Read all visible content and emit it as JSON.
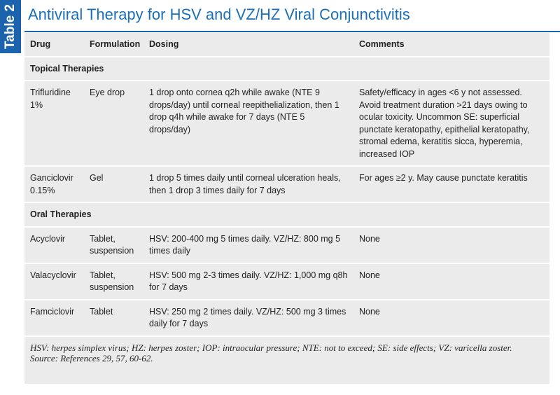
{
  "label": "Table 2",
  "title": "Antiviral Therapy for HSV and VZ/HZ Viral Conjunctivitis",
  "table": {
    "columns": [
      "Drug",
      "Formulation",
      "Dosing",
      "Comments"
    ],
    "sections": [
      {
        "title": "Topical Therapies",
        "rows": [
          [
            "Trifluridine 1%",
            "Eye drop",
            "1 drop onto cornea q2h while awake (NTE 9 drops/day) until corneal reepithelialization, then 1 drop q4h while awake for 7 days (NTE 5 drops/day)",
            "Safety/efficacy in ages <6 y not assessed. Avoid treatment duration >21 days owing to ocular toxicity. Uncommon SE: superficial punctate keratopathy, epithelial keratopathy, stromal edema, keratitis sicca, hyperemia, increased IOP"
          ],
          [
            "Ganciclovir 0.15%",
            "Gel",
            "1 drop 5 times daily until corneal ulceration heals, then 1 drop 3 times daily for 7 days",
            "For ages ≥2 y. May cause punctate keratitis"
          ]
        ]
      },
      {
        "title": "Oral Therapies",
        "rows": [
          [
            "Acyclovir",
            "Tablet, suspension",
            "HSV: 200-400 mg 5 times daily. VZ/HZ: 800 mg 5 times daily",
            "None"
          ],
          [
            "Valacyclovir",
            "Tablet, suspension",
            "HSV: 500 mg 2-3 times daily. VZ/HZ: 1,000 mg q8h for 7 days",
            "None"
          ],
          [
            "Famciclovir",
            "Tablet",
            "HSV: 250 mg 2 times daily. VZ/HZ: 500 mg 3 times daily for 7 days",
            "None"
          ]
        ]
      }
    ]
  },
  "footnote": {
    "lines": [
      "HSV: herpes simplex virus; HZ: herpes zoster; IOP: intraocular pressure; NTE: not to exceed; SE: side effects; VZ: varicella zoster.",
      "Source: References 29, 57, 60-62."
    ]
  }
}
